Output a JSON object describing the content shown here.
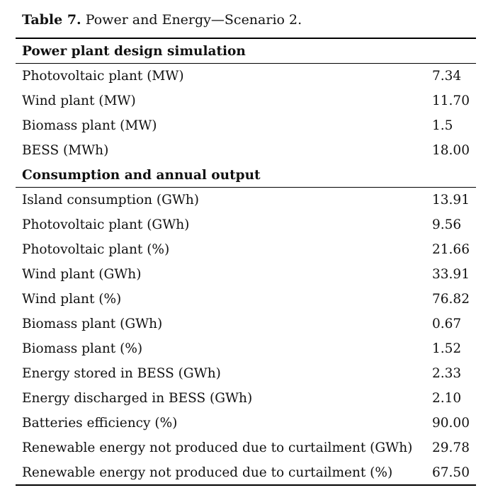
{
  "caption": {
    "label": "Table 7.",
    "text": " Power and Energy—Scenario 2."
  },
  "sections": [
    {
      "heading": "Power plant design simulation",
      "rows": [
        {
          "label": "Photovoltaic plant (MW)",
          "value": "7.34"
        },
        {
          "label": "Wind plant (MW)",
          "value": "11.70"
        },
        {
          "label": "Biomass plant (MW)",
          "value": "1.5"
        },
        {
          "label": "BESS (MWh)",
          "value": "18.00"
        }
      ]
    },
    {
      "heading": "Consumption and annual output",
      "rows": [
        {
          "label": "Island consumption (GWh)",
          "value": "13.91"
        },
        {
          "label": "Photovoltaic plant (GWh)",
          "value": "9.56"
        },
        {
          "label": "Photovoltaic plant (%)",
          "value": "21.66"
        },
        {
          "label": "Wind plant (GWh)",
          "value": "33.91"
        },
        {
          "label": "Wind plant (%)",
          "value": "76.82"
        },
        {
          "label": "Biomass plant (GWh)",
          "value": "0.67"
        },
        {
          "label": "Biomass plant (%)",
          "value": "1.52"
        },
        {
          "label": "Energy stored in BESS (GWh)",
          "value": "2.33"
        },
        {
          "label": "Energy discharged in BESS (GWh)",
          "value": "2.10"
        },
        {
          "label": "Batteries efficiency (%)",
          "value": "90.00"
        },
        {
          "label": "Renewable energy not produced due to curtailment (GWh)",
          "value": "29.78"
        },
        {
          "label": "Renewable energy not produced due to curtailment (%)",
          "value": "67.50"
        }
      ]
    }
  ]
}
